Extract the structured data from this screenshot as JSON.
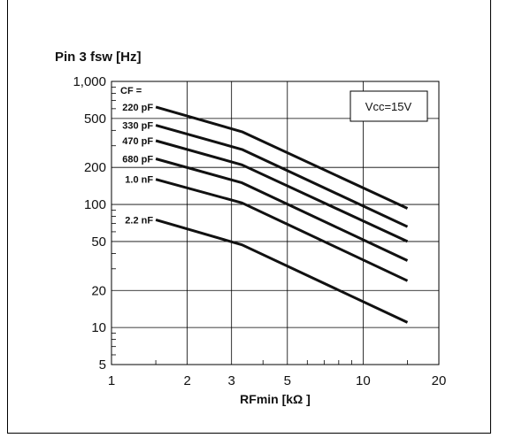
{
  "chart_data": {
    "type": "line",
    "title": "Pin 3 fsw [Hz]",
    "xlabel": "RFmin [kΩ ]",
    "ylabel": "",
    "xscale": "log",
    "yscale": "log",
    "xlim": [
      1,
      20
    ],
    "ylim": [
      5,
      1000
    ],
    "x_ticks": [
      1,
      2,
      3,
      5,
      10,
      20
    ],
    "x_tick_labels": [
      "1",
      "2",
      "3",
      "5",
      "10",
      "20"
    ],
    "y_ticks": [
      5,
      10,
      20,
      50,
      100,
      200,
      500,
      1000
    ],
    "y_tick_labels": [
      "5",
      "10",
      "20",
      "50",
      "100",
      "200",
      "500",
      "1,000"
    ],
    "grid": true,
    "legend_header": "CF =",
    "annotation": "Vcc=15V",
    "series": [
      {
        "name": "220 pF",
        "x": [
          1.5,
          3.3,
          15
        ],
        "y": [
          620,
          390,
          93
        ]
      },
      {
        "name": "330 pF",
        "x": [
          1.5,
          3.3,
          15
        ],
        "y": [
          440,
          280,
          66
        ]
      },
      {
        "name": "470 pF",
        "x": [
          1.5,
          3.3,
          15
        ],
        "y": [
          330,
          210,
          50
        ]
      },
      {
        "name": "680 pF",
        "x": [
          1.5,
          3.3,
          15
        ],
        "y": [
          235,
          150,
          35
        ]
      },
      {
        "name": "1.0 nF",
        "x": [
          1.5,
          3.3,
          15
        ],
        "y": [
          160,
          103,
          24
        ]
      },
      {
        "name": "2.2 nF",
        "x": [
          1.5,
          3.3,
          15
        ],
        "y": [
          75,
          47,
          11
        ]
      }
    ]
  }
}
